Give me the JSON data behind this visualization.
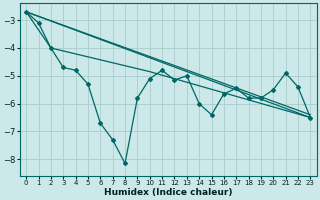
{
  "xlabel": "Humidex (Indice chaleur)",
  "background_color": "#cce8e8",
  "grid_color": "#aacccc",
  "line_color": "#006666",
  "xlim": [
    -0.5,
    23.5
  ],
  "ylim": [
    -8.6,
    -2.4
  ],
  "yticks": [
    -8,
    -7,
    -6,
    -5,
    -4,
    -3
  ],
  "xticks": [
    0,
    1,
    2,
    3,
    4,
    5,
    6,
    7,
    8,
    9,
    10,
    11,
    12,
    13,
    14,
    15,
    16,
    17,
    18,
    19,
    20,
    21,
    22,
    23
  ],
  "line1_x": [
    0,
    1,
    2,
    3,
    4,
    5,
    6,
    7,
    8,
    9,
    10,
    11,
    12,
    13,
    14,
    15,
    16,
    17,
    18,
    19,
    20,
    21,
    22,
    23
  ],
  "line1_y": [
    -2.7,
    -3.1,
    -4.0,
    -4.7,
    -4.8,
    -5.3,
    -6.7,
    -7.3,
    -8.15,
    -5.8,
    -5.1,
    -4.8,
    -5.15,
    -5.0,
    -6.0,
    -6.4,
    -5.65,
    -5.45,
    -5.8,
    -5.8,
    -5.5,
    -4.9,
    -5.4,
    -6.5
  ],
  "line2_x": [
    0,
    23
  ],
  "line2_y": [
    -2.7,
    -6.5
  ],
  "line3_x": [
    0,
    2,
    10,
    23
  ],
  "line3_y": [
    -2.7,
    -4.0,
    -4.85,
    -6.5
  ],
  "line4_x": [
    0,
    23
  ],
  "line4_y": [
    -2.7,
    -6.4
  ]
}
